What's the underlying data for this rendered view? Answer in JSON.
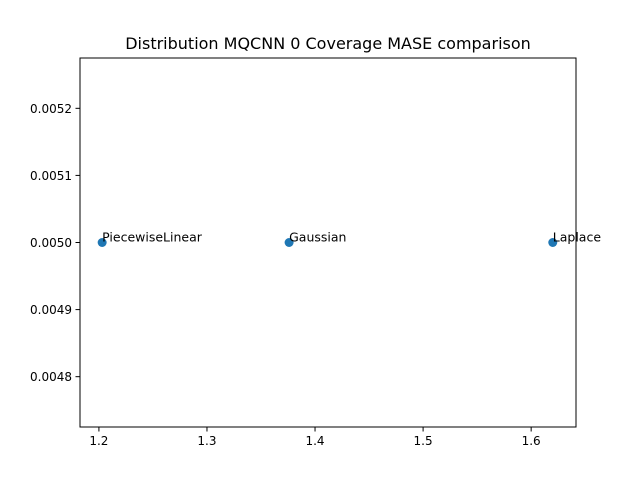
{
  "chart_data": {
    "type": "scatter",
    "title": "Distribution MQCNN 0 Coverage MASE comparison",
    "xlabel": "",
    "ylabel": "",
    "xlim": [
      1.1825,
      1.6415
    ],
    "ylim": [
      0.004725,
      0.005275
    ],
    "x_ticks": [
      1.2,
      1.3,
      1.4,
      1.5,
      1.6
    ],
    "x_tick_labels": [
      "1.2",
      "1.3",
      "1.4",
      "1.5",
      "1.6"
    ],
    "y_ticks": [
      0.0048,
      0.0049,
      0.005,
      0.0051,
      0.0052
    ],
    "y_tick_labels": [
      "0.0048",
      "0.0049",
      "0.0050",
      "0.0051",
      "0.0052"
    ],
    "grid": false,
    "marker_color": "#1f77b4",
    "points": [
      {
        "label": "PiecewiseLinear",
        "x": 1.203,
        "y": 0.005
      },
      {
        "label": "Gaussian",
        "x": 1.376,
        "y": 0.005
      },
      {
        "label": "Laplace",
        "x": 1.62,
        "y": 0.005
      }
    ]
  }
}
